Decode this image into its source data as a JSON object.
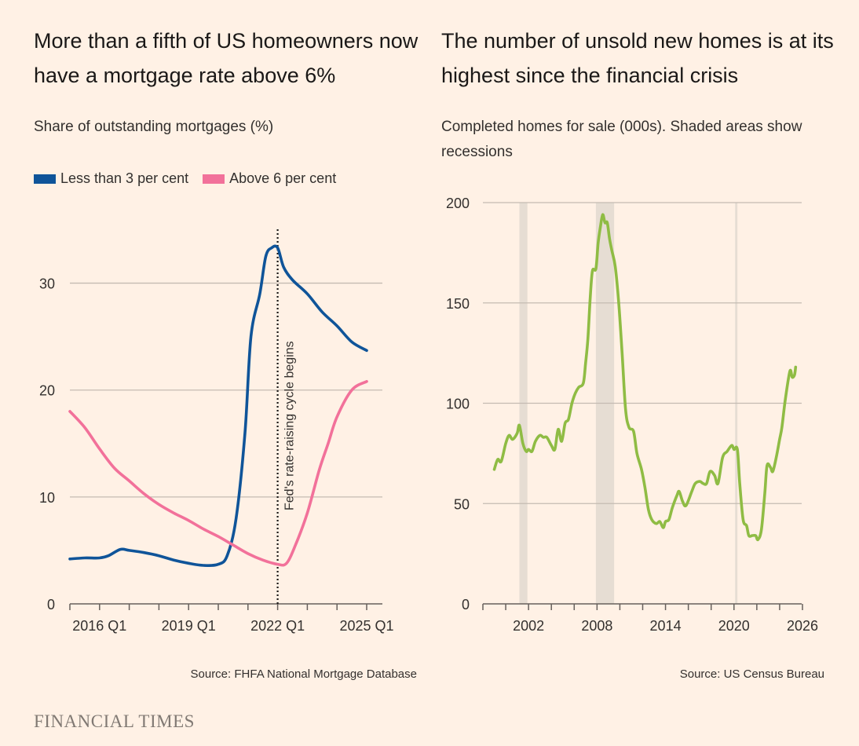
{
  "colors": {
    "background": "#fff1e5",
    "blue": "#0f5499",
    "pink": "#f2719a",
    "green": "#8fbc44",
    "grid": "#c4bbb2",
    "recession": "#e6ddd3"
  },
  "brand": "FINANCIAL TIMES",
  "chart_data": [
    {
      "type": "line",
      "title": "More than a fifth of US homeowners now have a mortgage rate above 6%",
      "subtitle": "Share of outstanding mortgages (%)",
      "source": "Source: FHFA National Mortgage Database",
      "xlabel": "",
      "ylabel": "",
      "xlim": [
        2015.0,
        2025.0
      ],
      "ylim": [
        0,
        35
      ],
      "yticks": [
        0,
        10,
        20,
        30
      ],
      "ytick_labels": [
        "0",
        "10",
        "20",
        "30"
      ],
      "xticks": [
        2016.0,
        2019.0,
        2022.0,
        2025.0
      ],
      "xtick_labels": [
        "2016 Q1",
        "2019 Q1",
        "2022 Q1",
        "2025 Q1"
      ],
      "legend": [
        "Less than 3 per cent",
        "Above 6 per cent"
      ],
      "legend_placement": "top-left",
      "annotation": {
        "text": "Fed's rate-raising cycle begins",
        "x": 2022.0
      },
      "series": [
        {
          "name": "Less than 3 per cent",
          "x": [
            2015.0,
            2015.5,
            2016.0,
            2016.3,
            2016.7,
            2017.0,
            2017.5,
            2018.0,
            2018.5,
            2019.0,
            2019.5,
            2020.0,
            2020.3,
            2020.6,
            2020.9,
            2021.1,
            2021.4,
            2021.6,
            2021.8,
            2022.0,
            2022.2,
            2022.5,
            2023.0,
            2023.5,
            2024.0,
            2024.5,
            2025.0
          ],
          "values": [
            4.2,
            4.3,
            4.3,
            4.5,
            5.1,
            5.0,
            4.8,
            4.5,
            4.1,
            3.8,
            3.6,
            3.7,
            4.5,
            8,
            16,
            25,
            29,
            32.5,
            33.3,
            33.3,
            31.5,
            30.3,
            29,
            27.3,
            26,
            24.5,
            23.7
          ]
        },
        {
          "name": "Above 6 per cent",
          "x": [
            2015.0,
            2015.5,
            2016.0,
            2016.5,
            2017.0,
            2017.5,
            2018.0,
            2018.5,
            2019.0,
            2019.5,
            2020.0,
            2020.5,
            2021.0,
            2021.5,
            2022.0,
            2022.3,
            2022.6,
            2023.0,
            2023.4,
            2023.7,
            2024.0,
            2024.5,
            2025.0
          ],
          "values": [
            18,
            16.5,
            14.5,
            12.7,
            11.5,
            10.3,
            9.3,
            8.5,
            7.8,
            7.0,
            6.3,
            5.5,
            4.7,
            4.1,
            3.7,
            3.8,
            5.5,
            8.5,
            12.5,
            15,
            17.5,
            20,
            20.8
          ]
        }
      ]
    },
    {
      "type": "line",
      "title": "The number of unsold new homes is at its highest since the financial crisis",
      "subtitle": "Completed homes for sale (000s). Shaded areas show recessions",
      "source": "Source: US Census Bureau",
      "xlabel": "",
      "ylabel": "",
      "xlim": [
        1998,
        2026
      ],
      "ylim": [
        0,
        200
      ],
      "yticks": [
        0,
        50,
        100,
        150,
        200
      ],
      "ytick_labels": [
        "0",
        "50",
        "100",
        "150",
        "200"
      ],
      "xticks": [
        2002,
        2008,
        2014,
        2020,
        2026
      ],
      "xtick_labels": [
        "2002",
        "2008",
        "2014",
        "2020",
        "2026"
      ],
      "recessions": [
        [
          2001.2,
          2001.9
        ],
        [
          2007.9,
          2009.5
        ],
        [
          2020.1,
          2020.3
        ]
      ],
      "series": [
        {
          "name": "Completed homes for sale",
          "x": [
            1999.0,
            1999.3,
            1999.6,
            2000.0,
            2000.3,
            2000.6,
            2001.0,
            2001.2,
            2001.5,
            2001.8,
            2002.0,
            2002.3,
            2002.6,
            2003.0,
            2003.3,
            2003.6,
            2004.0,
            2004.3,
            2004.6,
            2004.9,
            2005.2,
            2005.5,
            2005.8,
            2006.1,
            2006.4,
            2006.8,
            2007.0,
            2007.2,
            2007.4,
            2007.6,
            2007.9,
            2008.1,
            2008.3,
            2008.5,
            2008.7,
            2008.9,
            2009.1,
            2009.3,
            2009.6,
            2009.9,
            2010.2,
            2010.5,
            2010.8,
            2011.2,
            2011.5,
            2011.9,
            2012.2,
            2012.5,
            2012.8,
            2013.2,
            2013.5,
            2013.8,
            2014.0,
            2014.3,
            2014.6,
            2015.0,
            2015.2,
            2015.5,
            2015.8,
            2016.3,
            2016.6,
            2017.0,
            2017.3,
            2017.6,
            2017.9,
            2018.3,
            2018.6,
            2019.0,
            2019.4,
            2019.8,
            2020.0,
            2020.3,
            2020.5,
            2020.8,
            2021.1,
            2021.3,
            2021.6,
            2021.9,
            2022.1,
            2022.4,
            2022.7,
            2022.9,
            2023.2,
            2023.4,
            2023.7,
            2024.0,
            2024.2,
            2024.5,
            2024.9,
            2025.1,
            2025.3,
            2025.4
          ],
          "values": [
            67,
            72,
            71,
            80,
            84,
            82,
            85,
            89,
            80,
            76,
            77,
            76,
            81,
            84,
            83,
            83,
            79,
            77,
            87,
            81,
            90,
            92,
            100,
            105,
            108,
            110,
            120,
            132,
            152,
            166,
            167,
            180,
            188,
            194,
            190,
            190,
            182,
            176,
            168,
            150,
            125,
            97,
            88,
            86,
            75,
            67,
            58,
            47,
            42,
            40,
            41,
            38,
            41,
            42,
            48,
            54,
            56,
            51,
            49,
            56,
            60,
            61,
            60,
            60,
            66,
            64,
            60,
            73,
            76,
            79,
            77,
            77,
            60,
            42,
            39,
            34,
            34,
            34,
            32,
            37,
            55,
            69,
            68,
            66,
            73,
            82,
            88,
            102,
            116,
            113,
            114,
            118
          ]
        }
      ]
    }
  ]
}
